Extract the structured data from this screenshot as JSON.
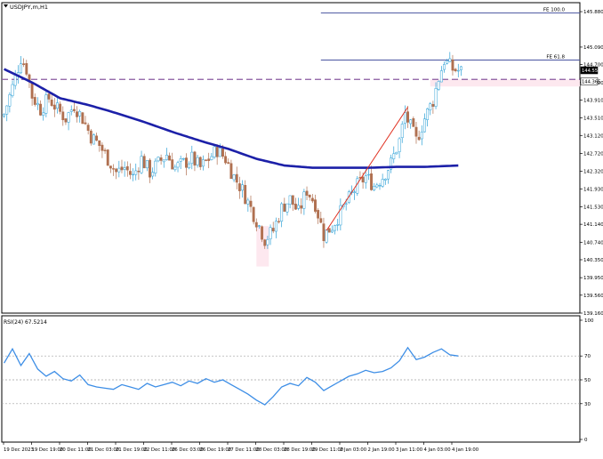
{
  "symbol_label": "USDJPY,m,H1",
  "rsi_label": "RSI(24) 67.5214",
  "colors": {
    "bull_candle": "#2a9fd6",
    "bear_candle": "#b07050",
    "ma_line": "#1c20a8",
    "rsi_line": "#3d8ee6",
    "fib_line": "#4a55a0",
    "dashed_level": "#8a5aa0",
    "trend_line": "#e03020",
    "highlight_zone": "#fde8ef"
  },
  "chart_data": {
    "type": "candlestick",
    "price_axis": {
      "min": 139.16,
      "max": 146.08,
      "ticks": [
        "145.880",
        "145.090",
        "144.700",
        "144.300",
        "143.910",
        "143.510",
        "143.120",
        "142.720",
        "142.320",
        "141.930",
        "141.530",
        "141.140",
        "140.740",
        "140.350",
        "139.950",
        "139.560",
        "139.160"
      ]
    },
    "x_axis_labels": [
      "19 Dec 2023",
      "19 Dec 19:00",
      "20 Dec 11:00",
      "21 Dec 03:00",
      "21 Dec 19:00",
      "22 Dec 11:00",
      "26 Dec 03:00",
      "26 Dec 19:00",
      "27 Dec 11:00",
      "28 Dec 03:00",
      "28 Dec 19:00",
      "29 Dec 11:00",
      "2 Jan 03:00",
      "2 Jan 19:00",
      "3 Jan 11:00",
      "4 Jan 03:00",
      "4 Jan 19:00"
    ],
    "price_badges": [
      {
        "value": "144.553"
      },
      {
        "value": "144.365"
      }
    ],
    "fib_levels": [
      {
        "label": "FE 100.0",
        "price": 145.85
      },
      {
        "label": "FE 61.8",
        "price": 144.8
      }
    ],
    "dashed_level_price": 144.37,
    "close_path": [
      [
        0,
        143.6
      ],
      [
        3,
        144.2
      ],
      [
        6,
        144.85
      ],
      [
        8,
        144.6
      ],
      [
        10,
        144.0
      ],
      [
        13,
        143.7
      ],
      [
        16,
        143.95
      ],
      [
        19,
        143.7
      ],
      [
        22,
        143.5
      ],
      [
        25,
        143.8
      ],
      [
        28,
        143.5
      ],
      [
        31,
        143.1
      ],
      [
        34,
        142.9
      ],
      [
        37,
        142.6
      ],
      [
        40,
        142.3
      ],
      [
        43,
        142.4
      ],
      [
        46,
        142.2
      ],
      [
        49,
        142.6
      ],
      [
        52,
        142.3
      ],
      [
        55,
        142.5
      ],
      [
        58,
        142.7
      ],
      [
        61,
        142.4
      ],
      [
        64,
        142.5
      ],
      [
        67,
        142.6
      ],
      [
        70,
        142.4
      ],
      [
        73,
        142.6
      ],
      [
        76,
        142.8
      ],
      [
        79,
        142.6
      ],
      [
        82,
        142.2
      ],
      [
        85,
        141.9
      ],
      [
        88,
        141.5
      ],
      [
        91,
        141.1
      ],
      [
        93,
        140.8
      ],
      [
        96,
        141.0
      ],
      [
        99,
        141.5
      ],
      [
        102,
        141.7
      ],
      [
        105,
        141.4
      ],
      [
        108,
        141.9
      ],
      [
        111,
        141.6
      ],
      [
        114,
        140.9
      ],
      [
        117,
        141.1
      ],
      [
        120,
        141.4
      ],
      [
        123,
        141.7
      ],
      [
        126,
        142.0
      ],
      [
        129,
        142.2
      ],
      [
        132,
        142.0
      ],
      [
        135,
        142.2
      ],
      [
        138,
        142.5
      ],
      [
        141,
        143.0
      ],
      [
        143,
        143.6
      ],
      [
        145,
        143.3
      ],
      [
        147,
        143.0
      ],
      [
        150,
        143.5
      ],
      [
        153,
        143.9
      ],
      [
        155,
        144.4
      ],
      [
        157,
        144.8
      ],
      [
        160,
        144.6
      ],
      [
        163,
        144.55
      ]
    ],
    "ma_line": [
      [
        0,
        144.6
      ],
      [
        10,
        144.3
      ],
      [
        20,
        143.95
      ],
      [
        30,
        143.8
      ],
      [
        40,
        143.62
      ],
      [
        50,
        143.42
      ],
      [
        60,
        143.2
      ],
      [
        70,
        143.0
      ],
      [
        80,
        142.82
      ],
      [
        90,
        142.6
      ],
      [
        100,
        142.45
      ],
      [
        110,
        142.4
      ],
      [
        120,
        142.4
      ],
      [
        130,
        142.4
      ],
      [
        140,
        142.42
      ],
      [
        150,
        142.42
      ],
      [
        162,
        142.45
      ]
    ],
    "trend_line": [
      [
        115,
        141.0
      ],
      [
        144,
        143.75
      ]
    ],
    "rsi": {
      "levels": [
        70,
        50,
        30
      ],
      "scale_labels": [
        "100",
        "70",
        "50",
        "30",
        "0"
      ],
      "values": [
        [
          0,
          64
        ],
        [
          3,
          76
        ],
        [
          6,
          62
        ],
        [
          9,
          72
        ],
        [
          12,
          59
        ],
        [
          15,
          53
        ],
        [
          18,
          57
        ],
        [
          21,
          51
        ],
        [
          24,
          49
        ],
        [
          27,
          54
        ],
        [
          30,
          46
        ],
        [
          33,
          44
        ],
        [
          36,
          43
        ],
        [
          39,
          42
        ],
        [
          42,
          46
        ],
        [
          45,
          44
        ],
        [
          48,
          42
        ],
        [
          51,
          47
        ],
        [
          54,
          44
        ],
        [
          57,
          46
        ],
        [
          60,
          48
        ],
        [
          63,
          45
        ],
        [
          66,
          49
        ],
        [
          69,
          47
        ],
        [
          72,
          51
        ],
        [
          75,
          48
        ],
        [
          78,
          50
        ],
        [
          81,
          46
        ],
        [
          84,
          42
        ],
        [
          87,
          38
        ],
        [
          90,
          33
        ],
        [
          93,
          29
        ],
        [
          96,
          36
        ],
        [
          99,
          44
        ],
        [
          102,
          47
        ],
        [
          105,
          45
        ],
        [
          108,
          52
        ],
        [
          111,
          48
        ],
        [
          114,
          41
        ],
        [
          117,
          45
        ],
        [
          120,
          49
        ],
        [
          123,
          53
        ],
        [
          126,
          55
        ],
        [
          129,
          58
        ],
        [
          132,
          56
        ],
        [
          135,
          57
        ],
        [
          138,
          60
        ],
        [
          141,
          66
        ],
        [
          144,
          77
        ],
        [
          147,
          67
        ],
        [
          150,
          69
        ],
        [
          153,
          73
        ],
        [
          156,
          76
        ],
        [
          159,
          71
        ],
        [
          162,
          70
        ]
      ]
    }
  }
}
